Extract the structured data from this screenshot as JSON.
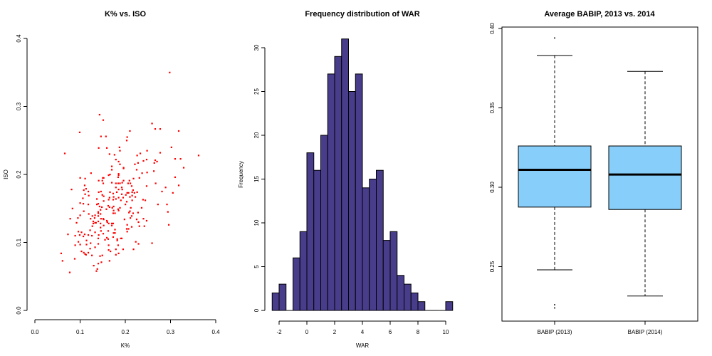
{
  "chart_data": [
    {
      "type": "scatter",
      "title": "K% vs. ISO",
      "xlabel": "K%",
      "ylabel": "ISO",
      "xlim": [
        0,
        0.4
      ],
      "ylim": [
        0,
        0.4
      ],
      "xticks": [
        "0.0",
        "0.1",
        "0.2",
        "0.3",
        "0.4"
      ],
      "yticks": [
        "0.0",
        "0.1",
        "0.2",
        "0.3",
        "0.4"
      ],
      "grid": false,
      "color": "#ff0000",
      "points": [
        [
          0.298,
          0.35
        ],
        [
          0.143,
          0.288
        ],
        [
          0.151,
          0.28
        ],
        [
          0.099,
          0.262
        ],
        [
          0.259,
          0.275
        ],
        [
          0.266,
          0.267
        ],
        [
          0.277,
          0.267
        ],
        [
          0.318,
          0.264
        ],
        [
          0.21,
          0.264
        ],
        [
          0.146,
          0.256
        ],
        [
          0.157,
          0.256
        ],
        [
          0.204,
          0.255
        ],
        [
          0.203,
          0.25
        ],
        [
          0.066,
          0.231
        ],
        [
          0.141,
          0.239
        ],
        [
          0.159,
          0.239
        ],
        [
          0.187,
          0.24
        ],
        [
          0.188,
          0.235
        ],
        [
          0.248,
          0.235
        ],
        [
          0.302,
          0.24
        ],
        [
          0.362,
          0.228
        ],
        [
          0.277,
          0.232
        ],
        [
          0.233,
          0.231
        ],
        [
          0.226,
          0.228
        ],
        [
          0.165,
          0.23
        ],
        [
          0.176,
          0.229
        ],
        [
          0.179,
          0.222
        ],
        [
          0.185,
          0.219
        ],
        [
          0.188,
          0.215
        ],
        [
          0.247,
          0.222
        ],
        [
          0.24,
          0.22
        ],
        [
          0.266,
          0.221
        ],
        [
          0.27,
          0.219
        ],
        [
          0.264,
          0.217
        ],
        [
          0.31,
          0.223
        ],
        [
          0.322,
          0.223
        ],
        [
          0.329,
          0.21
        ],
        [
          0.228,
          0.217
        ],
        [
          0.221,
          0.215
        ],
        [
          0.196,
          0.21
        ],
        [
          0.196,
          0.209
        ],
        [
          0.17,
          0.212
        ],
        [
          0.17,
          0.207
        ],
        [
          0.225,
          0.207
        ],
        [
          0.263,
          0.205
        ],
        [
          0.248,
          0.203
        ],
        [
          0.237,
          0.202
        ],
        [
          0.124,
          0.202
        ],
        [
          0.166,
          0.2
        ],
        [
          0.163,
          0.199
        ],
        [
          0.185,
          0.201
        ],
        [
          0.185,
          0.199
        ],
        [
          0.184,
          0.196
        ],
        [
          0.15,
          0.195
        ],
        [
          0.152,
          0.195
        ],
        [
          0.1,
          0.195
        ],
        [
          0.111,
          0.194
        ],
        [
          0.231,
          0.195
        ],
        [
          0.218,
          0.194
        ],
        [
          0.31,
          0.196
        ],
        [
          0.141,
          0.191
        ],
        [
          0.149,
          0.191
        ],
        [
          0.196,
          0.191
        ],
        [
          0.209,
          0.191
        ],
        [
          0.151,
          0.187
        ],
        [
          0.17,
          0.188
        ],
        [
          0.179,
          0.187
        ],
        [
          0.184,
          0.187
        ],
        [
          0.188,
          0.187
        ],
        [
          0.193,
          0.188
        ],
        [
          0.206,
          0.187
        ],
        [
          0.211,
          0.187
        ],
        [
          0.267,
          0.187
        ],
        [
          0.318,
          0.184
        ],
        [
          0.11,
          0.184
        ],
        [
          0.113,
          0.179
        ],
        [
          0.081,
          0.178
        ],
        [
          0.108,
          0.177
        ],
        [
          0.118,
          0.175
        ],
        [
          0.111,
          0.171
        ],
        [
          0.119,
          0.169
        ],
        [
          0.141,
          0.174
        ],
        [
          0.146,
          0.175
        ],
        [
          0.166,
          0.174
        ],
        [
          0.179,
          0.181
        ],
        [
          0.192,
          0.181
        ],
        [
          0.185,
          0.178
        ],
        [
          0.193,
          0.178
        ],
        [
          0.214,
          0.183
        ],
        [
          0.247,
          0.183
        ],
        [
          0.289,
          0.181
        ],
        [
          0.281,
          0.175
        ],
        [
          0.305,
          0.173
        ],
        [
          0.173,
          0.172
        ],
        [
          0.181,
          0.174
        ],
        [
          0.204,
          0.173
        ],
        [
          0.207,
          0.173
        ],
        [
          0.215,
          0.174
        ],
        [
          0.22,
          0.173
        ],
        [
          0.226,
          0.174
        ],
        [
          0.217,
          0.177
        ],
        [
          0.149,
          0.17
        ],
        [
          0.152,
          0.168
        ],
        [
          0.192,
          0.171
        ],
        [
          0.201,
          0.17
        ],
        [
          0.215,
          0.169
        ],
        [
          0.21,
          0.167
        ],
        [
          0.222,
          0.167
        ],
        [
          0.106,
          0.165
        ],
        [
          0.137,
          0.164
        ],
        [
          0.165,
          0.166
        ],
        [
          0.174,
          0.167
        ],
        [
          0.185,
          0.166
        ],
        [
          0.195,
          0.166
        ],
        [
          0.152,
          0.161
        ],
        [
          0.163,
          0.163
        ],
        [
          0.173,
          0.163
        ],
        [
          0.179,
          0.164
        ],
        [
          0.19,
          0.162
        ],
        [
          0.203,
          0.16
        ],
        [
          0.215,
          0.162
        ],
        [
          0.239,
          0.163
        ],
        [
          0.244,
          0.162
        ],
        [
          0.1,
          0.158
        ],
        [
          0.107,
          0.157
        ],
        [
          0.118,
          0.156
        ],
        [
          0.137,
          0.156
        ],
        [
          0.14,
          0.157
        ],
        [
          0.2,
          0.156
        ],
        [
          0.272,
          0.156
        ],
        [
          0.292,
          0.156
        ],
        [
          0.143,
          0.153
        ],
        [
          0.162,
          0.154
        ],
        [
          0.165,
          0.152
        ],
        [
          0.171,
          0.151
        ],
        [
          0.174,
          0.153
        ],
        [
          0.148,
          0.152
        ],
        [
          0.083,
          0.15
        ],
        [
          0.188,
          0.151
        ],
        [
          0.212,
          0.151
        ],
        [
          0.236,
          0.151
        ],
        [
          0.145,
          0.148
        ],
        [
          0.158,
          0.149
        ],
        [
          0.184,
          0.149
        ],
        [
          0.185,
          0.147
        ],
        [
          0.174,
          0.147
        ],
        [
          0.108,
          0.146
        ],
        [
          0.21,
          0.146
        ],
        [
          0.208,
          0.144
        ],
        [
          0.228,
          0.144
        ],
        [
          0.294,
          0.145
        ],
        [
          0.119,
          0.142
        ],
        [
          0.14,
          0.145
        ],
        [
          0.14,
          0.143
        ],
        [
          0.145,
          0.142
        ],
        [
          0.173,
          0.143
        ],
        [
          0.177,
          0.143
        ],
        [
          0.217,
          0.143
        ],
        [
          0.1,
          0.14
        ],
        [
          0.127,
          0.139
        ],
        [
          0.133,
          0.14
        ],
        [
          0.14,
          0.139
        ],
        [
          0.214,
          0.139
        ],
        [
          0.078,
          0.135
        ],
        [
          0.095,
          0.136
        ],
        [
          0.123,
          0.135
        ],
        [
          0.132,
          0.136
        ],
        [
          0.146,
          0.135
        ],
        [
          0.151,
          0.135
        ],
        [
          0.152,
          0.134
        ],
        [
          0.211,
          0.136
        ],
        [
          0.225,
          0.134
        ],
        [
          0.24,
          0.135
        ],
        [
          0.198,
          0.134
        ],
        [
          0.247,
          0.132
        ],
        [
          0.129,
          0.131
        ],
        [
          0.14,
          0.131
        ],
        [
          0.159,
          0.132
        ],
        [
          0.16,
          0.13
        ],
        [
          0.092,
          0.129
        ],
        [
          0.129,
          0.128
        ],
        [
          0.133,
          0.129
        ],
        [
          0.135,
          0.129
        ],
        [
          0.145,
          0.128
        ],
        [
          0.163,
          0.128
        ],
        [
          0.17,
          0.128
        ],
        [
          0.173,
          0.128
        ],
        [
          0.229,
          0.13
        ],
        [
          0.127,
          0.124
        ],
        [
          0.152,
          0.125
        ],
        [
          0.17,
          0.125
        ],
        [
          0.204,
          0.126
        ],
        [
          0.231,
          0.124
        ],
        [
          0.242,
          0.124
        ],
        [
          0.296,
          0.126
        ],
        [
          0.145,
          0.122
        ],
        [
          0.214,
          0.123
        ],
        [
          0.203,
          0.12
        ],
        [
          0.207,
          0.12
        ],
        [
          0.122,
          0.118
        ],
        [
          0.177,
          0.119
        ],
        [
          0.096,
          0.116
        ],
        [
          0.103,
          0.115
        ],
        [
          0.146,
          0.117
        ],
        [
          0.162,
          0.117
        ],
        [
          0.204,
          0.116
        ],
        [
          0.073,
          0.112
        ],
        [
          0.089,
          0.11
        ],
        [
          0.099,
          0.111
        ],
        [
          0.11,
          0.112
        ],
        [
          0.107,
          0.109
        ],
        [
          0.118,
          0.111
        ],
        [
          0.126,
          0.11
        ],
        [
          0.133,
          0.115
        ],
        [
          0.141,
          0.111
        ],
        [
          0.151,
          0.113
        ],
        [
          0.174,
          0.114
        ],
        [
          0.177,
          0.114
        ],
        [
          0.14,
          0.106
        ],
        [
          0.159,
          0.107
        ],
        [
          0.155,
          0.104
        ],
        [
          0.162,
          0.105
        ],
        [
          0.173,
          0.108
        ],
        [
          0.182,
          0.105
        ],
        [
          0.182,
          0.103
        ],
        [
          0.19,
          0.106
        ],
        [
          0.192,
          0.106
        ],
        [
          0.114,
          0.103
        ],
        [
          0.096,
          0.101
        ],
        [
          0.123,
          0.099
        ],
        [
          0.14,
          0.098
        ],
        [
          0.089,
          0.096
        ],
        [
          0.1,
          0.097
        ],
        [
          0.114,
          0.097
        ],
        [
          0.163,
          0.096
        ],
        [
          0.184,
          0.096
        ],
        [
          0.223,
          0.101
        ],
        [
          0.229,
          0.098
        ],
        [
          0.259,
          0.099
        ],
        [
          0.133,
          0.093
        ],
        [
          0.122,
          0.091
        ],
        [
          0.163,
          0.089
        ],
        [
          0.167,
          0.087
        ],
        [
          0.179,
          0.09
        ],
        [
          0.195,
          0.09
        ],
        [
          0.218,
          0.09
        ],
        [
          0.103,
          0.087
        ],
        [
          0.108,
          0.085
        ],
        [
          0.111,
          0.083
        ],
        [
          0.113,
          0.082
        ],
        [
          0.118,
          0.085
        ],
        [
          0.058,
          0.084
        ],
        [
          0.126,
          0.081
        ],
        [
          0.144,
          0.08
        ],
        [
          0.149,
          0.081
        ],
        [
          0.179,
          0.082
        ],
        [
          0.185,
          0.084
        ],
        [
          0.088,
          0.076
        ],
        [
          0.061,
          0.073
        ],
        [
          0.165,
          0.073
        ],
        [
          0.14,
          0.069
        ],
        [
          0.147,
          0.071
        ],
        [
          0.13,
          0.066
        ],
        [
          0.138,
          0.061
        ],
        [
          0.136,
          0.058
        ],
        [
          0.077,
          0.056
        ]
      ]
    },
    {
      "type": "bar",
      "subtype": "histogram",
      "title": "Frequency distribution of WAR",
      "xlabel": "WAR",
      "ylabel": "Frequency",
      "xticks": [
        "-2",
        "0",
        "2",
        "4",
        "6",
        "8",
        "10"
      ],
      "yticks": [
        "0",
        "5",
        "10",
        "15",
        "20",
        "25",
        "30"
      ],
      "bin_start": -2.5,
      "bin_width": 0.5,
      "counts": [
        2,
        3,
        0,
        6,
        9,
        18,
        16,
        20,
        27,
        29,
        31,
        25,
        27,
        14,
        15,
        16,
        8,
        9,
        4,
        3,
        2,
        1,
        0,
        0,
        0,
        1
      ],
      "color": "#483d8b",
      "grid": false
    },
    {
      "type": "box",
      "title": "Average BABIP, 2013 vs. 2014",
      "categories": [
        "BABIP (2013)",
        "BABIP (2014)"
      ],
      "yticks": [
        "0.25",
        "0.30",
        "0.35",
        "0.40"
      ],
      "ylim": [
        0.216,
        0.401
      ],
      "color": "#87cefa",
      "boxes": [
        {
          "lower_whisker": 0.248,
          "q1": 0.2875,
          "median": 0.311,
          "q3": 0.326,
          "upper_whisker": 0.383,
          "outliers": [
            0.394,
            0.226,
            0.224
          ]
        },
        {
          "lower_whisker": 0.2315,
          "q1": 0.286,
          "median": 0.308,
          "q3": 0.326,
          "upper_whisker": 0.373,
          "outliers": []
        }
      ]
    }
  ]
}
